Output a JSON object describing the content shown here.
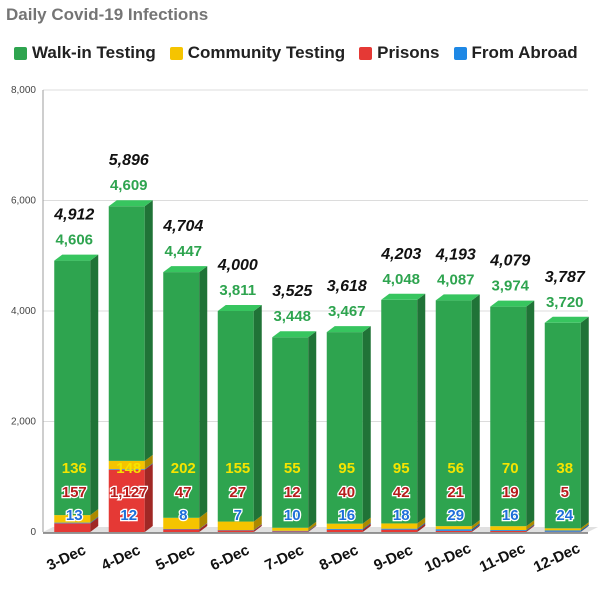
{
  "chart_data": {
    "type": "bar",
    "stacked": true,
    "title": "Daily Covid-19 Infections",
    "categories": [
      "3-Dec",
      "4-Dec",
      "5-Dec",
      "6-Dec",
      "7-Dec",
      "8-Dec",
      "9-Dec",
      "10-Dec",
      "11-Dec",
      "12-Dec"
    ],
    "totals": [
      "4,912",
      "5,896",
      "4,704",
      "4,000",
      "3,525",
      "3,618",
      "4,203",
      "4,193",
      "4,079",
      "3,787"
    ],
    "series": [
      {
        "name": "Walk-in Testing",
        "color": "#2ea44f",
        "values": [
          4606,
          4609,
          4447,
          3811,
          3448,
          3467,
          4048,
          4087,
          3974,
          3720
        ]
      },
      {
        "name": "Community Testing",
        "color": "#f5c400",
        "values": [
          136,
          148,
          202,
          155,
          55,
          95,
          95,
          56,
          70,
          38
        ]
      },
      {
        "name": "Prisons",
        "color": "#e53935",
        "values": [
          157,
          1127,
          47,
          27,
          12,
          40,
          42,
          21,
          19,
          5
        ]
      },
      {
        "name": "From Abroad",
        "color": "#1e88e5",
        "values": [
          13,
          12,
          8,
          7,
          10,
          16,
          18,
          29,
          16,
          24
        ]
      }
    ],
    "ylim": [
      0,
      8000
    ],
    "yticks": [
      "0",
      "2,000",
      "4,000",
      "6,000",
      "8,000"
    ],
    "grid": true,
    "legend": "top"
  }
}
